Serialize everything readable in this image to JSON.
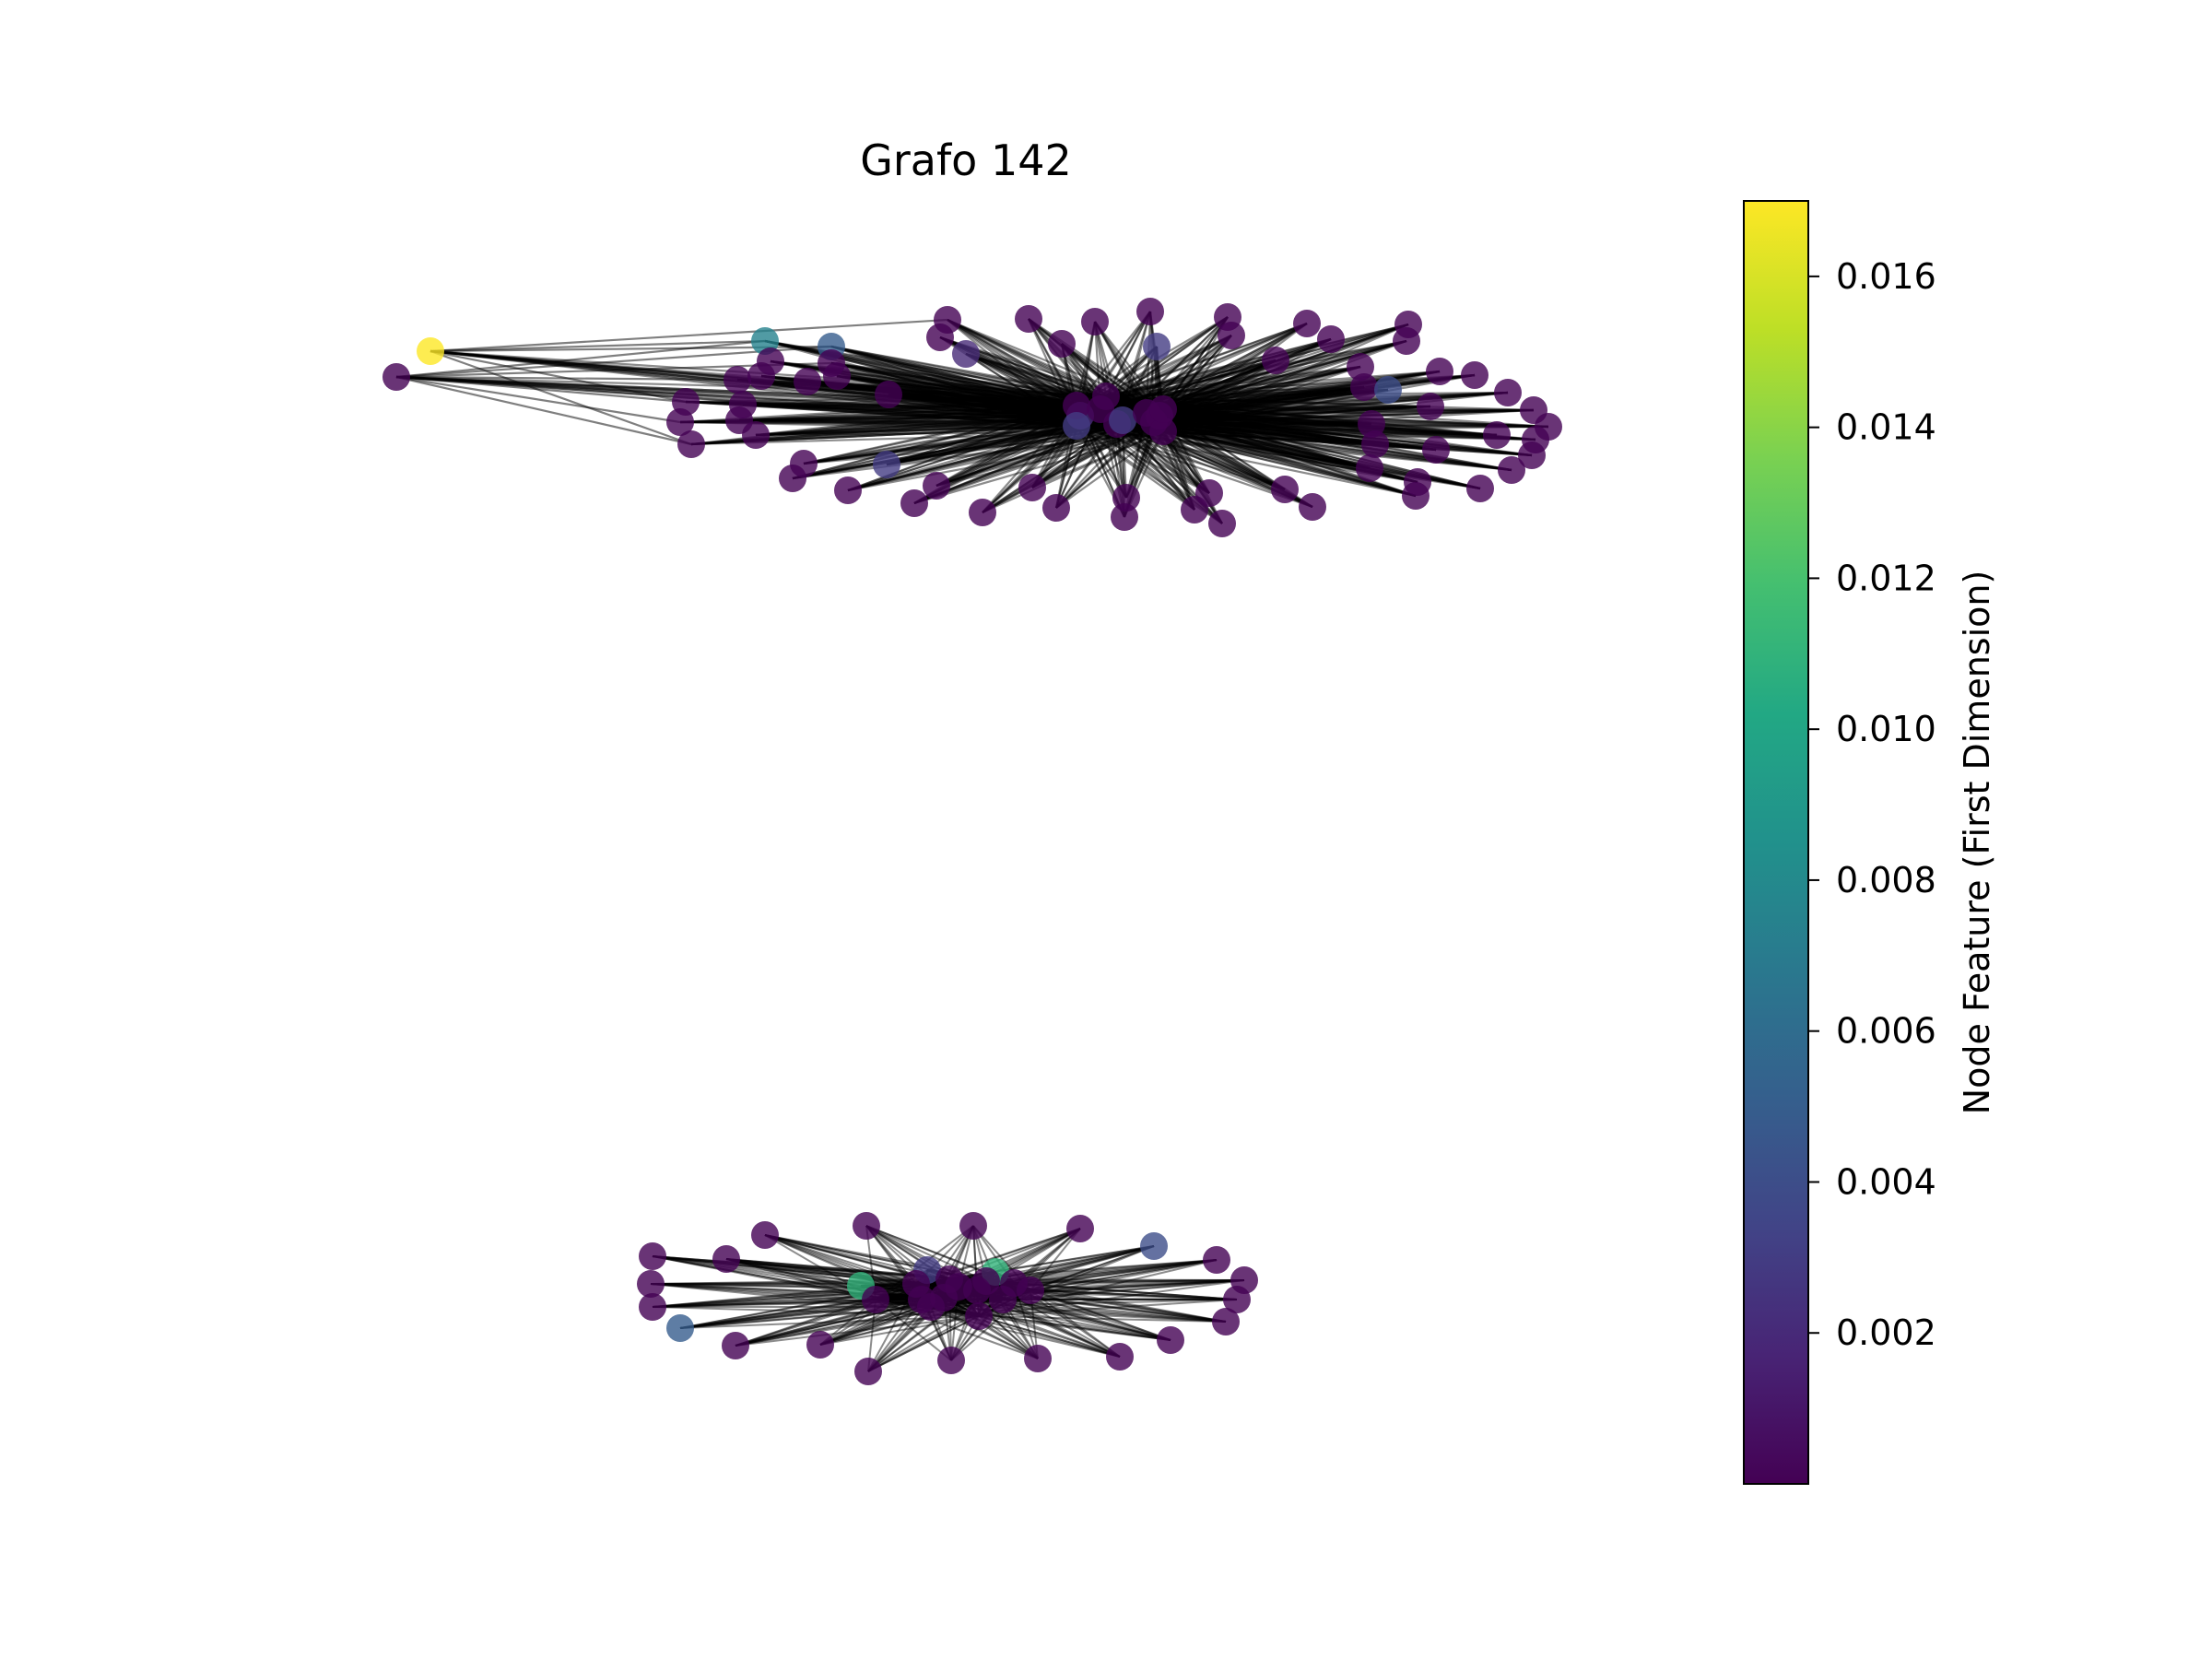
{
  "title": "Grafo 142",
  "colorbar": {
    "label": "Node Feature (First Dimension)",
    "min": 0.0,
    "max": 0.017,
    "ticks": [
      0.002,
      0.004,
      0.006,
      0.008,
      0.01,
      0.012,
      0.014,
      0.016
    ],
    "tick_labels": [
      "0.002",
      "0.004",
      "0.006",
      "0.008",
      "0.010",
      "0.012",
      "0.014",
      "0.016"
    ],
    "colormap": "viridis"
  },
  "colors": {
    "edge": "#000000",
    "node_low": "#440154",
    "node_high": "#fde725"
  }
}
